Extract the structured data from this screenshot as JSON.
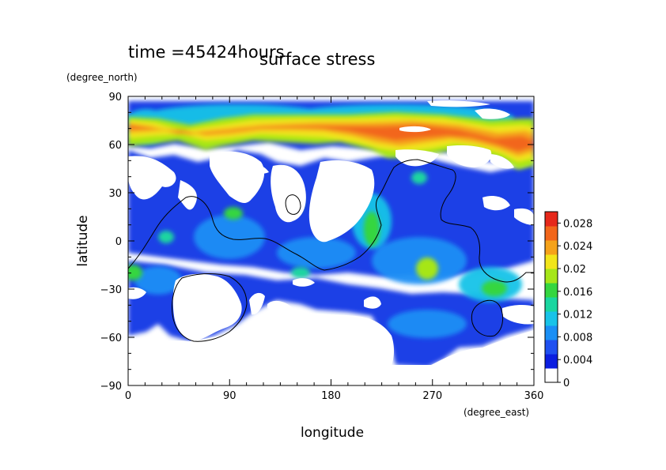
{
  "chart_data": {
    "type": "heatmap",
    "title": "surface stress",
    "time_label": "time =45424hours",
    "xlabel": "longitude",
    "ylabel": "latitude",
    "x_unit": "(degree_east)",
    "y_unit": "(degree_north)",
    "xlim": [
      0,
      360
    ],
    "ylim": [
      -90,
      90
    ],
    "x_ticks": [
      0,
      90,
      180,
      270,
      360
    ],
    "y_ticks": [
      -90,
      -60,
      -30,
      0,
      30,
      60,
      90
    ],
    "x_tick_labels": [
      "0",
      "90",
      "180",
      "270",
      "360"
    ],
    "y_tick_labels": [
      "−90",
      "−60",
      "−30",
      "0",
      "30",
      "60",
      "90"
    ],
    "colorbar": {
      "min": 0,
      "max": 0.03,
      "tick_labels": [
        "0",
        "0.004",
        "0.008",
        "0.012",
        "0.016",
        "0.02",
        "0.024",
        "0.028"
      ],
      "tick_values": [
        0,
        0.004,
        0.008,
        0.012,
        0.016,
        0.02,
        0.024,
        0.028
      ],
      "colors": [
        "#ffffff",
        "#0b1ee0",
        "#1f50f0",
        "#1a8ff5",
        "#18c3e8",
        "#1ad6a0",
        "#35d640",
        "#a6e619",
        "#f2e51a",
        "#f5a21a",
        "#f2661a",
        "#e6281a"
      ]
    },
    "regions": [
      {
        "desc": "northern high-latitude jet",
        "lon": [
          0,
          360
        ],
        "lat": [
          55,
          80
        ],
        "value": 0.026
      },
      {
        "desc": "jet core",
        "lon": [
          160,
          300
        ],
        "lat": [
          62,
          72
        ],
        "value": 0.028
      },
      {
        "desc": "jet west end",
        "lon": [
          0,
          20
        ],
        "lat": [
          60,
          78
        ],
        "value": 0.024
      },
      {
        "desc": "jet east end",
        "lon": [
          335,
          360
        ],
        "lat": [
          45,
          75
        ],
        "value": 0.026
      },
      {
        "desc": "ridge descending",
        "lon": [
          215,
          235
        ],
        "lat": [
          5,
          55
        ],
        "value": 0.02
      },
      {
        "desc": "mid-basin peak",
        "lon": [
          260,
          280
        ],
        "lat": [
          -25,
          -10
        ],
        "value": 0.02
      },
      {
        "desc": "southern belt",
        "lon": [
          0,
          360
        ],
        "lat": [
          -65,
          -20
        ],
        "value": 0.006
      },
      {
        "desc": "tropical band",
        "lon": [
          0,
          360
        ],
        "lat": [
          -20,
          50
        ],
        "value": 0.006
      }
    ]
  }
}
